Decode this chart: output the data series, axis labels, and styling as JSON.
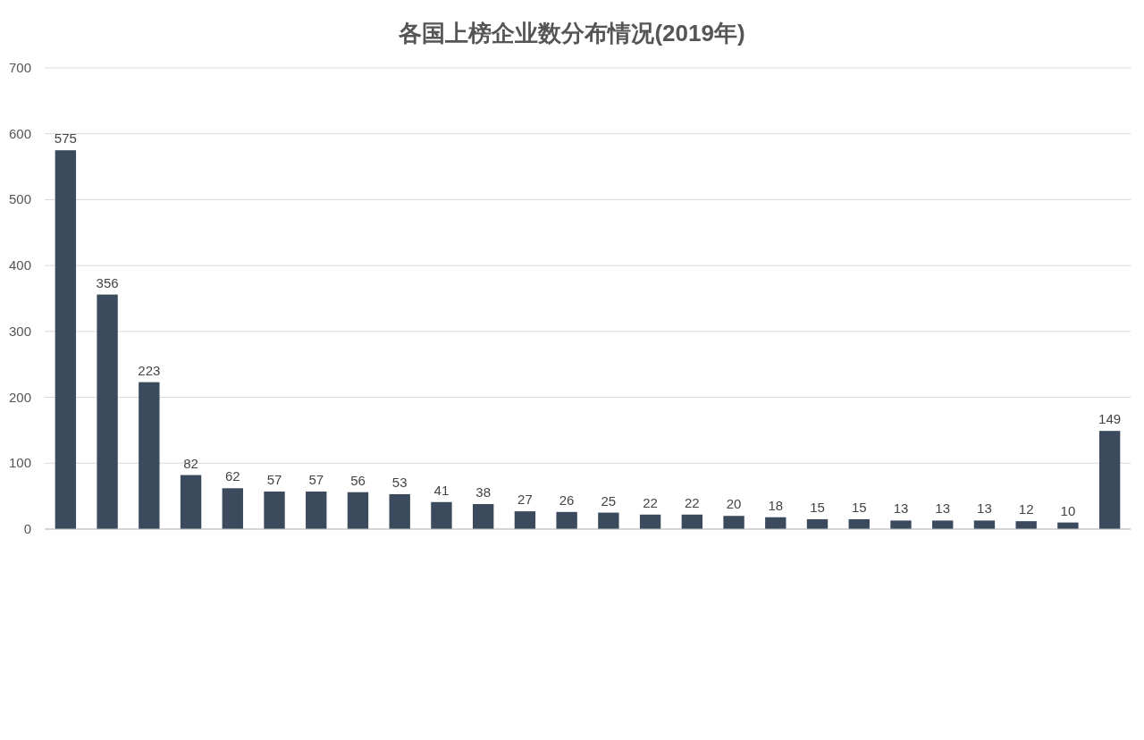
{
  "chart_data": {
    "type": "bar",
    "title": "各国上榜企业数分布情况(2019年)",
    "categories": [
      null,
      null,
      null,
      null,
      null,
      null,
      null,
      null,
      null,
      null,
      null,
      null,
      null,
      null,
      null,
      null,
      null,
      null,
      null,
      null,
      null,
      null,
      null,
      null,
      null,
      null
    ],
    "values": [
      575,
      356,
      223,
      82,
      62,
      57,
      57,
      56,
      53,
      41,
      38,
      27,
      26,
      25,
      22,
      22,
      20,
      18,
      15,
      15,
      13,
      13,
      13,
      12,
      10,
      149
    ],
    "color": "#3b4b5d",
    "ylim": [
      0,
      700
    ],
    "yticks": [
      0,
      100,
      200,
      300,
      400,
      500,
      600,
      700
    ],
    "grid": "y",
    "data_labels": true
  }
}
